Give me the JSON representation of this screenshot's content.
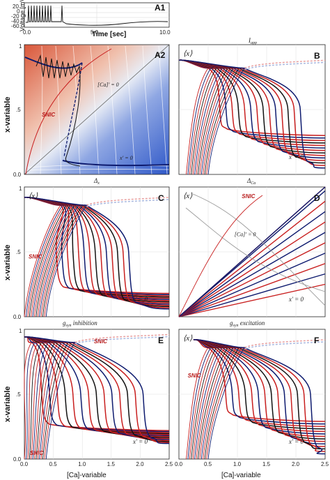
{
  "figure": {
    "a1": {
      "label": "A1",
      "ylabel": "Voltage [mV]",
      "xlabel": "Time [sec]",
      "yticks": [
        "20",
        "0",
        "-20",
        "-40",
        "-60"
      ],
      "xticks": [
        "0.0",
        "5.0",
        "10.0"
      ]
    },
    "panels": [
      {
        "id": "A2",
        "label": "A2",
        "top_label": "",
        "bottom_label": "Δ",
        "bottom_sub": "x",
        "annot_ca": "[Ca]' = 0",
        "annot_x": "x' = 0",
        "snic": "SNIC",
        "avg": ""
      },
      {
        "id": "B",
        "label": "B",
        "top_label": "I",
        "top_sub": "app",
        "bottom_label": "Δ",
        "bottom_sub": "Ca",
        "annot_x": "x' = 0",
        "avg": "⟨x⟩",
        "snic": ""
      },
      {
        "id": "C",
        "label": "C",
        "top_label": "",
        "bottom_label": "g",
        "bottom_sub": "syn",
        "bottom_rest": " inhibition",
        "annot_x": "x' = 0",
        "snic": "SNIC",
        "avg": "⟨x⟩"
      },
      {
        "id": "D",
        "label": "D",
        "top_label": "",
        "bottom_label": "g",
        "bottom_sub": "syn",
        "bottom_rest": " excitation",
        "annot_ca": "[Ca]' = 0",
        "annot_x": "x' = 0",
        "snic": "SNIC",
        "avg": "⟨x⟩"
      },
      {
        "id": "E",
        "label": "E",
        "top_label": "",
        "annot_x": "x' = 0",
        "snic": "SNIC",
        "snic2": "SNIC",
        "avg": ""
      },
      {
        "id": "F",
        "label": "F",
        "top_label": "",
        "annot_x": "x' = 0",
        "snic": "SNIC",
        "avg": "⟨x⟩"
      }
    ],
    "y_axis_label": "x-variable",
    "x_axis_label": "[Ca]-variable",
    "y_ticks": [
      "0.0",
      ".5",
      "1"
    ],
    "x_ticks": [
      "0.0",
      "0.5",
      "1.0",
      "1.5",
      "2.0",
      "2.5"
    ],
    "colors": {
      "red": "#c81e1e",
      "navy": "#0d1a6e",
      "black": "#111111",
      "gray": "#9a9a9a",
      "field_warm": "#d9573a",
      "field_cold": "#2f58c8"
    }
  },
  "chart_data": [
    {
      "type": "line",
      "panel": "A1",
      "xlim": [
        0,
        10
      ],
      "ylim": [
        -60,
        20
      ],
      "xlabel": "Time [sec]",
      "ylabel": "Voltage [mV]",
      "description_series": [
        {
          "name": "",
          "x": [
            0.2,
            0.5,
            0.8,
            1.1,
            1.4,
            1.7,
            2.0,
            2.3,
            2.6,
            2.9,
            3.2,
            3.5
          ],
          "values": [
            20,
            20,
            20,
            20,
            20,
            20,
            20,
            20,
            20,
            20,
            20,
            20
          ]
        }
      ]
    },
    {
      "type": "line",
      "panel": "A2",
      "xlim": [
        0,
        2.5
      ],
      "ylim": [
        0,
        1
      ],
      "xlabel": "",
      "ylabel": "x-variable"
    },
    {
      "type": "line",
      "panel": "B",
      "xlim": [
        0,
        2.5
      ],
      "ylim": [
        0,
        1
      ]
    },
    {
      "type": "line",
      "panel": "C",
      "xlim": [
        0,
        2.5
      ],
      "ylim": [
        0,
        1
      ],
      "ylabel": "x-variable"
    },
    {
      "type": "line",
      "panel": "D",
      "xlim": [
        0,
        2.5
      ],
      "ylim": [
        0,
        1
      ]
    },
    {
      "type": "line",
      "panel": "E",
      "xlim": [
        0,
        2.5
      ],
      "ylim": [
        0,
        1
      ],
      "xlabel": "[Ca]-variable",
      "ylabel": "x-variable"
    },
    {
      "type": "line",
      "panel": "F",
      "xlim": [
        0,
        2.5
      ],
      "ylim": [
        0,
        1
      ],
      "xlabel": "[Ca]-variable"
    }
  ]
}
